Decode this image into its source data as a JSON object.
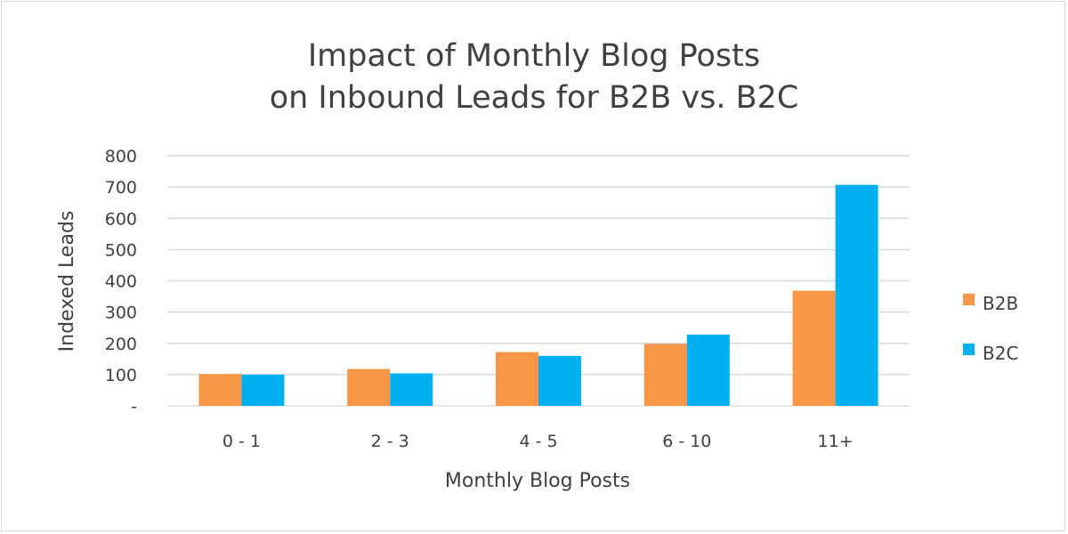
{
  "chart_data": {
    "type": "bar",
    "title_lines": [
      "Impact of Monthly Blog Posts",
      "on Inbound Leads for B2B vs. B2C"
    ],
    "xlabel": "Monthly Blog Posts",
    "ylabel": "Indexed Leads",
    "categories": [
      "0 - 1",
      "2 - 3",
      "4 - 5",
      "6 - 10",
      "11+"
    ],
    "series": [
      {
        "name": "B2B",
        "color": "#f79646",
        "values": [
          102,
          118,
          172,
          198,
          368
        ]
      },
      {
        "name": "B2C",
        "color": "#00b0f0",
        "values": [
          100,
          104,
          160,
          228,
          707
        ]
      }
    ],
    "ylim": [
      0,
      800
    ],
    "yticks": [
      {
        "value": 0,
        "label": "-"
      },
      {
        "value": 100,
        "label": "100"
      },
      {
        "value": 200,
        "label": "200"
      },
      {
        "value": 300,
        "label": "300"
      },
      {
        "value": 400,
        "label": "400"
      },
      {
        "value": 500,
        "label": "500"
      },
      {
        "value": 600,
        "label": "600"
      },
      {
        "value": 700,
        "label": "700"
      },
      {
        "value": 800,
        "label": "800"
      }
    ],
    "grid": true,
    "legend_position": "right"
  }
}
